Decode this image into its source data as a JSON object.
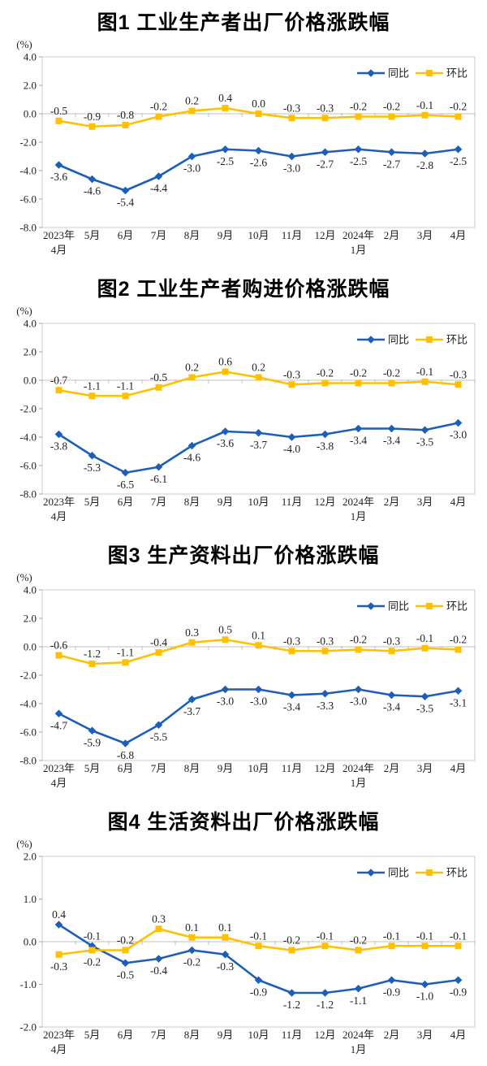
{
  "page": {
    "background": "#FFFFFF"
  },
  "colors": {
    "tongbi_blue": "#1D5FB8",
    "huanbi_yellow": "#FFC000",
    "axis_gray": "#C0C0C0",
    "frame_gray": "#D6D6D6",
    "label_dark": "#1F1F1F"
  },
  "legend": {
    "tongbi_label": "同比",
    "huanbi_label": "环比"
  },
  "chart_data": [
    {
      "type": "line",
      "title": "图1 工业生产者出厂价格涨跌幅",
      "unit": "(%)",
      "ylim": [
        -8,
        4
      ],
      "ytick_step": 2,
      "yticks": [
        "4.0",
        "2.0",
        "0.0",
        "-2.0",
        "-4.0",
        "-6.0",
        "-8.0"
      ],
      "categories": [
        "2023年|4月",
        "5月",
        "6月",
        "7月",
        "8月",
        "9月",
        "10月",
        "11月",
        "12月",
        "2024年|1月",
        "2月",
        "3月",
        "4月"
      ],
      "legend_position": "top-right",
      "grid": "zero-line-only",
      "series": [
        {
          "name": "同比",
          "color": "#1D5FB8",
          "marker": "diamond",
          "label_side": "below",
          "values": [
            -3.6,
            -4.6,
            -5.4,
            -4.4,
            -3.0,
            -2.5,
            -2.6,
            -3.0,
            -2.7,
            -2.5,
            -2.7,
            -2.8,
            -2.5
          ]
        },
        {
          "name": "环比",
          "color": "#FFC000",
          "marker": "square",
          "label_side": "above",
          "values": [
            -0.5,
            -0.9,
            -0.8,
            -0.2,
            0.2,
            0.4,
            0.0,
            -0.3,
            -0.3,
            -0.2,
            -0.2,
            -0.1,
            -0.2
          ]
        }
      ]
    },
    {
      "type": "line",
      "title": "图2 工业生产者购进价格涨跌幅",
      "unit": "(%)",
      "ylim": [
        -8,
        4
      ],
      "ytick_step": 2,
      "yticks": [
        "4.0",
        "2.0",
        "0.0",
        "-2.0",
        "-4.0",
        "-6.0",
        "-8.0"
      ],
      "categories": [
        "2023年|4月",
        "5月",
        "6月",
        "7月",
        "8月",
        "9月",
        "10月",
        "11月",
        "12月",
        "2024年|1月",
        "2月",
        "3月",
        "4月"
      ],
      "legend_position": "top-right",
      "grid": "zero-line-only",
      "series": [
        {
          "name": "同比",
          "color": "#1D5FB8",
          "marker": "diamond",
          "label_side": "below",
          "values": [
            -3.8,
            -5.3,
            -6.5,
            -6.1,
            -4.6,
            -3.6,
            -3.7,
            -4.0,
            -3.8,
            -3.4,
            -3.4,
            -3.5,
            -3.0
          ]
        },
        {
          "name": "环比",
          "color": "#FFC000",
          "marker": "square",
          "label_side": "above",
          "values": [
            -0.7,
            -1.1,
            -1.1,
            -0.5,
            0.2,
            0.6,
            0.2,
            -0.3,
            -0.2,
            -0.2,
            -0.2,
            -0.1,
            -0.3
          ]
        }
      ]
    },
    {
      "type": "line",
      "title": "图3 生产资料出厂价格涨跌幅",
      "unit": "(%)",
      "ylim": [
        -8,
        4
      ],
      "ytick_step": 2,
      "yticks": [
        "4.0",
        "2.0",
        "0.0",
        "-2.0",
        "-4.0",
        "-6.0",
        "-8.0"
      ],
      "categories": [
        "2023年|4月",
        "5月",
        "6月",
        "7月",
        "8月",
        "9月",
        "10月",
        "11月",
        "12月",
        "2024年|1月",
        "2月",
        "3月",
        "4月"
      ],
      "legend_position": "top-right",
      "grid": "zero-line-only",
      "series": [
        {
          "name": "同比",
          "color": "#1D5FB8",
          "marker": "diamond",
          "label_side": "below",
          "values": [
            -4.7,
            -5.9,
            -6.8,
            -5.5,
            -3.7,
            -3.0,
            -3.0,
            -3.4,
            -3.3,
            -3.0,
            -3.4,
            -3.5,
            -3.1
          ]
        },
        {
          "name": "环比",
          "color": "#FFC000",
          "marker": "square",
          "label_side": "above",
          "values": [
            -0.6,
            -1.2,
            -1.1,
            -0.4,
            0.3,
            0.5,
            0.1,
            -0.3,
            -0.3,
            -0.2,
            -0.3,
            -0.1,
            -0.2
          ]
        }
      ]
    },
    {
      "type": "line",
      "title": "图4 生活资料出厂价格涨跌幅",
      "unit": "(%)",
      "ylim": [
        -2,
        2
      ],
      "ytick_step": 1,
      "yticks": [
        "2.0",
        "1.0",
        "0.0",
        "-1.0",
        "-2.0"
      ],
      "categories": [
        "2023年|4月",
        "5月",
        "6月",
        "7月",
        "8月",
        "9月",
        "10月",
        "11月",
        "12月",
        "2024年|1月",
        "2月",
        "3月",
        "4月"
      ],
      "legend_position": "top-right",
      "grid": "zero-line-only",
      "series": [
        {
          "name": "同比",
          "color": "#1D5FB8",
          "marker": "diamond",
          "label_side": [
            "above",
            "above",
            "below",
            "below",
            "below",
            "below",
            "below",
            "below",
            "below",
            "below",
            "below",
            "below",
            "below"
          ],
          "values": [
            0.4,
            -0.1,
            -0.5,
            -0.4,
            -0.2,
            -0.3,
            -0.9,
            -1.2,
            -1.2,
            -1.1,
            -0.9,
            -1.0,
            -0.9
          ]
        },
        {
          "name": "环比",
          "color": "#FFC000",
          "marker": "square",
          "label_side": [
            "below",
            "below",
            "above",
            "above",
            "above",
            "above",
            "above",
            "above",
            "above",
            "above",
            "above",
            "above",
            "above"
          ],
          "values": [
            -0.3,
            -0.2,
            -0.2,
            0.3,
            0.1,
            0.1,
            -0.1,
            -0.2,
            -0.1,
            -0.2,
            -0.1,
            -0.1,
            -0.1
          ]
        }
      ]
    }
  ]
}
